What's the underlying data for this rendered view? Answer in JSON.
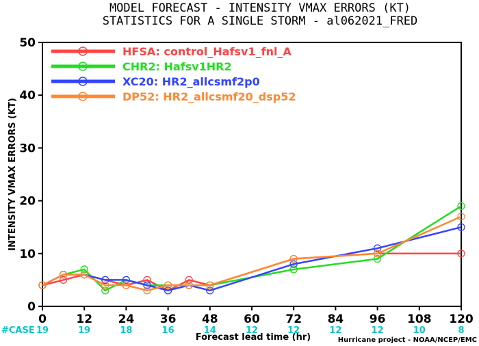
{
  "chart_data": {
    "type": "line",
    "title": "MODEL FORECAST - INTENSITY VMAX ERRORS (KT)",
    "subtitle": "STATISTICS FOR A SINGLE STORM - al062021_FRED",
    "xlabel": "Forecast lead time (hr)",
    "ylabel": "INTENSITY VMAX ERRORS (KT)",
    "xlim": [
      0,
      120
    ],
    "ylim": [
      0,
      50
    ],
    "x_ticks": [
      0,
      12,
      24,
      36,
      48,
      60,
      72,
      84,
      96,
      108,
      120
    ],
    "y_ticks": [
      0,
      10,
      20,
      30,
      40,
      50
    ],
    "case_label": "#CASE",
    "case_x": [
      0,
      12,
      24,
      36,
      48,
      60,
      72,
      84,
      96,
      108,
      120
    ],
    "case_counts": [
      19,
      19,
      18,
      16,
      14,
      12,
      12,
      12,
      12,
      10,
      8
    ],
    "case_color": "#00c8c8",
    "credit": "Hurricane project - NOAA/NCEP/EMC",
    "series": [
      {
        "name": "HFSA",
        "description": "control_Hafsv1_fnl_A",
        "color": "#ff4444",
        "x": [
          0,
          6,
          12,
          18,
          24,
          30,
          36,
          42,
          48,
          72,
          96,
          120
        ],
        "values": [
          4,
          5,
          6,
          5,
          4,
          5,
          3,
          5,
          4,
          9,
          10,
          10
        ]
      },
      {
        "name": "CHR2",
        "description": "Hafsv1HR2",
        "color": "#22dd22",
        "x": [
          0,
          6,
          12,
          18,
          24,
          30,
          36,
          42,
          48,
          72,
          96,
          120
        ],
        "values": [
          4,
          6,
          7,
          3,
          5,
          4,
          4,
          4,
          4,
          7,
          9,
          19
        ]
      },
      {
        "name": "XC20",
        "description": "HR2_allcsmf2p0",
        "color": "#3344ff",
        "x": [
          0,
          6,
          12,
          18,
          24,
          30,
          36,
          42,
          48,
          72,
          96,
          120
        ],
        "values": [
          4,
          6,
          6,
          5,
          5,
          4,
          3,
          4,
          3,
          8,
          11,
          15
        ]
      },
      {
        "name": "DP52",
        "description": "HR2_allcsmf20_dsp52",
        "color": "#ff8833",
        "x": [
          0,
          6,
          12,
          18,
          24,
          30,
          36,
          42,
          48,
          72,
          96,
          120
        ],
        "values": [
          4,
          6,
          6,
          4,
          4,
          3,
          4,
          4,
          4,
          9,
          10,
          17
        ]
      }
    ],
    "legend_position": "top-left",
    "grid": false
  }
}
